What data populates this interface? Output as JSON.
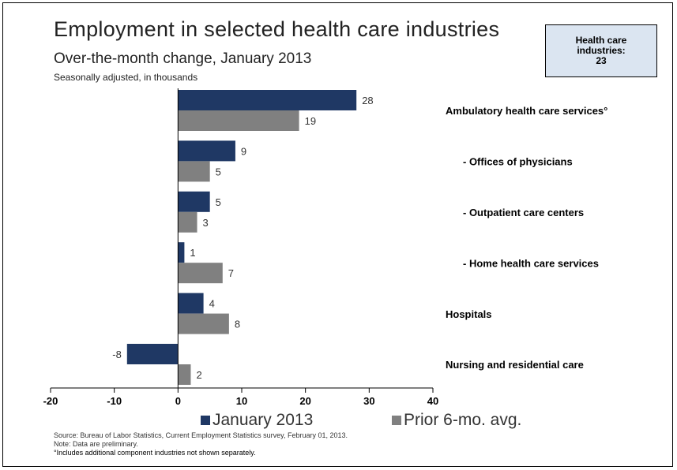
{
  "header": {
    "title": "Employment in selected health care industries",
    "subtitle": "Over-the-month change, January 2013",
    "units_note": "Seasonally adjusted, in thousands"
  },
  "callout": {
    "line1": "Health care",
    "line2": "industries:",
    "line3": "23"
  },
  "chart_data": {
    "type": "bar",
    "orientation": "horizontal",
    "categories": [
      "Ambulatory health care services°",
      "- Offices of physicians",
      "- Outpatient care centers",
      "- Home health care services",
      "Hospitals",
      "Nursing and residential care"
    ],
    "series": [
      {
        "name": "January 2013",
        "color": "#1f3864",
        "values": [
          28,
          9,
          5,
          1,
          4,
          -8
        ]
      },
      {
        "name": "Prior 6-mo. avg.",
        "color": "#808080",
        "values": [
          19,
          5,
          3,
          7,
          8,
          2
        ]
      }
    ],
    "data_labels": [
      [
        "28",
        "9",
        "5",
        "1",
        "4",
        "-8"
      ],
      [
        "19",
        "5",
        "3",
        "7",
        "8",
        "2"
      ]
    ],
    "xlim": [
      -20,
      40
    ],
    "xticks": [
      -20,
      -10,
      0,
      10,
      20,
      30,
      40
    ],
    "xtick_labels": [
      "-20",
      "-10",
      "0",
      "10",
      "20",
      "30",
      "40"
    ],
    "grid": false,
    "legend_position": "bottom"
  },
  "footer": {
    "source": "Source: Bureau of Labor Statistics, Current Employment Statistics survey, February 01, 2013.",
    "note": "Note: Data are preliminary.",
    "footnote": "°Includes additional component industries not shown separately."
  }
}
